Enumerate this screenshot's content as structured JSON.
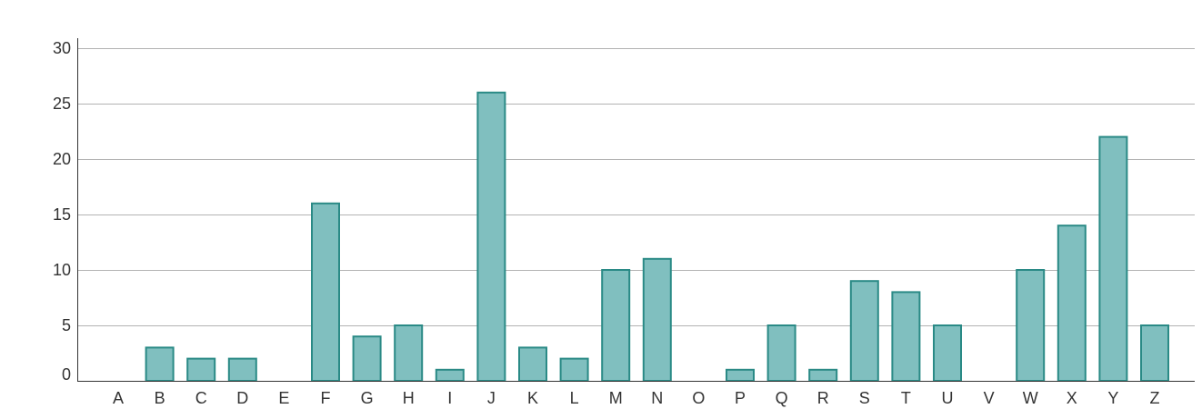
{
  "chart_data": {
    "type": "bar",
    "title": "",
    "xlabel": "",
    "ylabel": "",
    "categories": [
      "A",
      "B",
      "C",
      "D",
      "E",
      "F",
      "G",
      "H",
      "I",
      "J",
      "K",
      "L",
      "M",
      "N",
      "O",
      "P",
      "Q",
      "R",
      "S",
      "T",
      "U",
      "V",
      "W",
      "X",
      "Y",
      "Z"
    ],
    "values": [
      0,
      3,
      2,
      2,
      0,
      16,
      4,
      5,
      1,
      26,
      3,
      2,
      10,
      11,
      0,
      1,
      5,
      1,
      9,
      8,
      5,
      0,
      10,
      14,
      22,
      5
    ],
    "ylim": [
      0,
      30
    ],
    "yticks": [
      0,
      5,
      10,
      15,
      20,
      25,
      30
    ],
    "grid": true,
    "legend": "none",
    "colors": {
      "bar_fill": "#80bfbf",
      "bar_stroke": "#2a8a86",
      "axis": "#333333",
      "grid": "#b3b3b3"
    }
  }
}
